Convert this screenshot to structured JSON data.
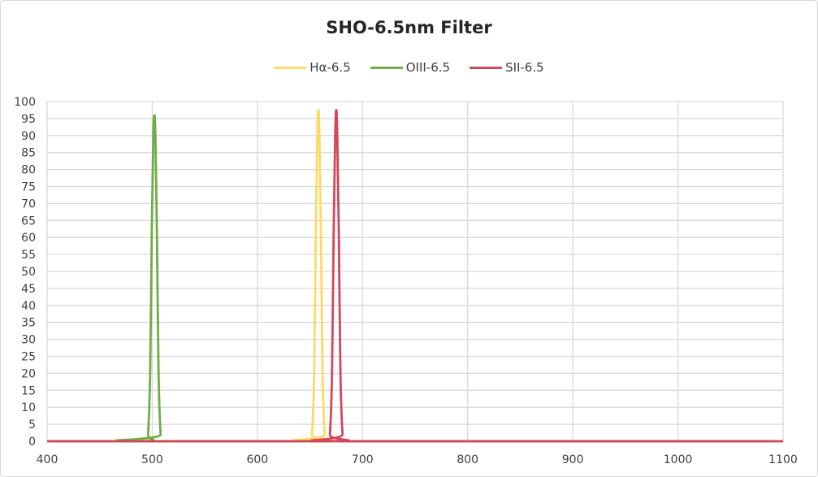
{
  "chart_data": {
    "type": "line",
    "title": "SHO-6.5nm Filter",
    "xlabel": "",
    "ylabel": "",
    "xlim": [
      400,
      1100
    ],
    "ylim": [
      0,
      100
    ],
    "x_ticks": [
      400,
      500,
      600,
      700,
      800,
      900,
      1000,
      1100
    ],
    "y_ticks": [
      0,
      5,
      10,
      15,
      20,
      25,
      30,
      35,
      40,
      45,
      50,
      55,
      60,
      65,
      70,
      75,
      80,
      85,
      90,
      95,
      100
    ],
    "grid": true,
    "legend_position": "top",
    "series": [
      {
        "name": "Hα-6.5",
        "color": "#FFD966",
        "points": [
          [
            400,
            0
          ],
          [
            650,
            0
          ],
          [
            652,
            2
          ],
          [
            654,
            20
          ],
          [
            655.5,
            60
          ],
          [
            657,
            90
          ],
          [
            658,
            97.5
          ],
          [
            659,
            90
          ],
          [
            660.5,
            60
          ],
          [
            662,
            20
          ],
          [
            664,
            2
          ],
          [
            666,
            0
          ],
          [
            1100,
            0
          ]
        ]
      },
      {
        "name": "OIII-6.5",
        "color": "#70AD47",
        "points": [
          [
            400,
            0
          ],
          [
            494,
            0
          ],
          [
            496,
            2
          ],
          [
            498,
            20
          ],
          [
            499.5,
            60
          ],
          [
            501,
            90
          ],
          [
            502,
            96
          ],
          [
            503,
            90
          ],
          [
            504.5,
            60
          ],
          [
            506,
            20
          ],
          [
            508,
            2
          ],
          [
            510,
            0
          ],
          [
            1100,
            0
          ]
        ]
      },
      {
        "name": "SII-6.5",
        "color": "#D2475A",
        "points": [
          [
            400,
            0
          ],
          [
            667,
            0
          ],
          [
            669,
            2
          ],
          [
            671,
            20
          ],
          [
            672.5,
            60
          ],
          [
            674,
            90
          ],
          [
            675,
            97.5
          ],
          [
            676,
            90
          ],
          [
            677.5,
            60
          ],
          [
            679,
            20
          ],
          [
            681,
            2
          ],
          [
            683,
            0
          ],
          [
            1100,
            0
          ]
        ]
      }
    ]
  }
}
